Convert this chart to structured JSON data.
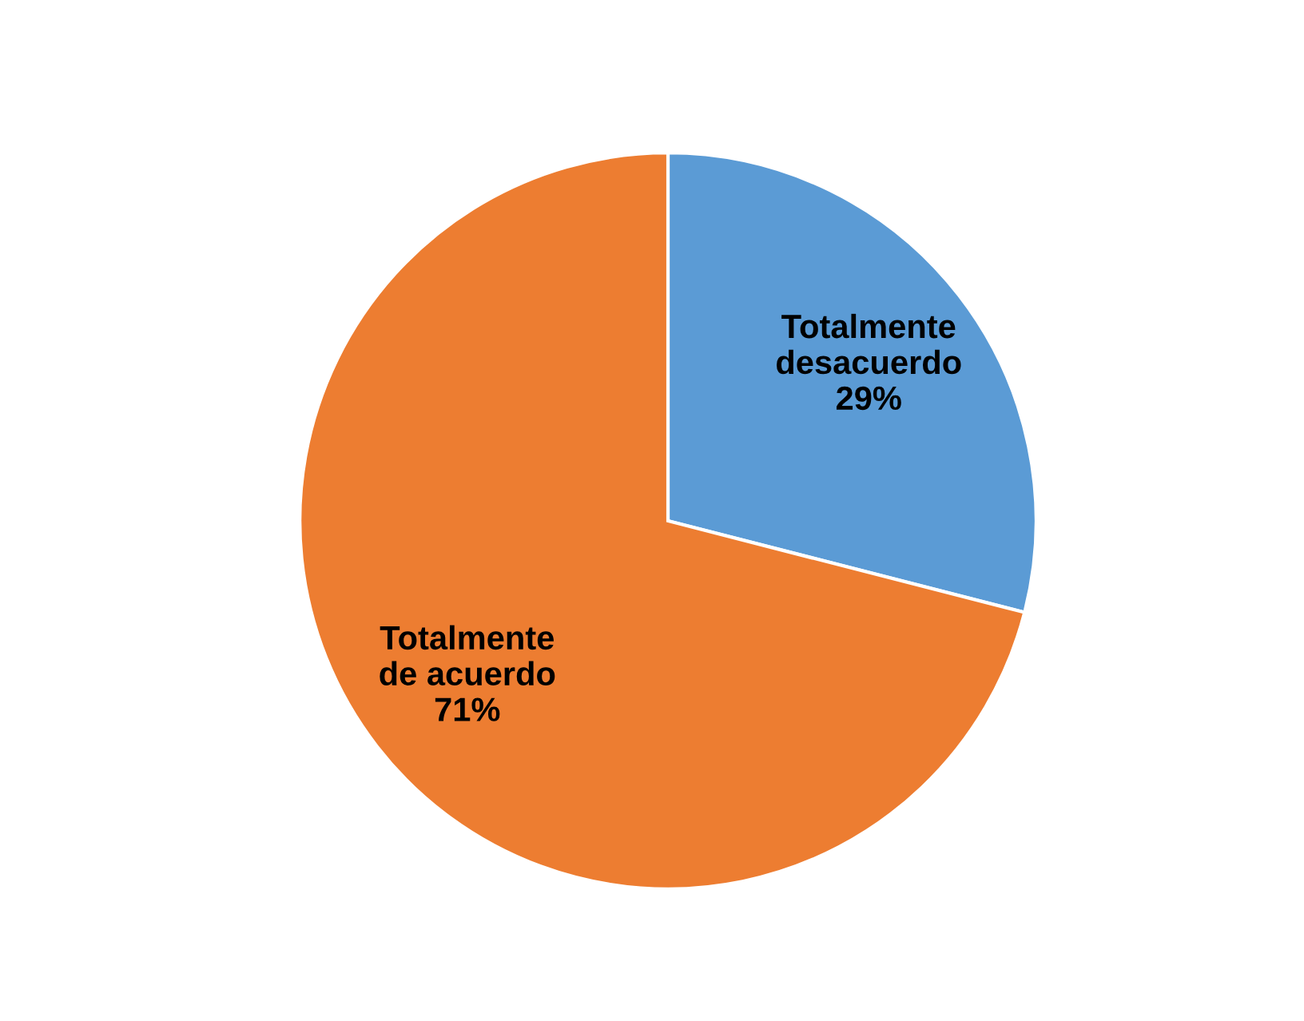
{
  "chart_data": {
    "type": "pie",
    "categories": [
      "Totalmente desacuerdo",
      "Totalmente de acuerdo"
    ],
    "values": [
      29,
      71
    ],
    "colors": [
      "#5b9bd5",
      "#ed7d31"
    ],
    "value_labels": [
      "29%",
      "71%"
    ],
    "legend": false
  }
}
